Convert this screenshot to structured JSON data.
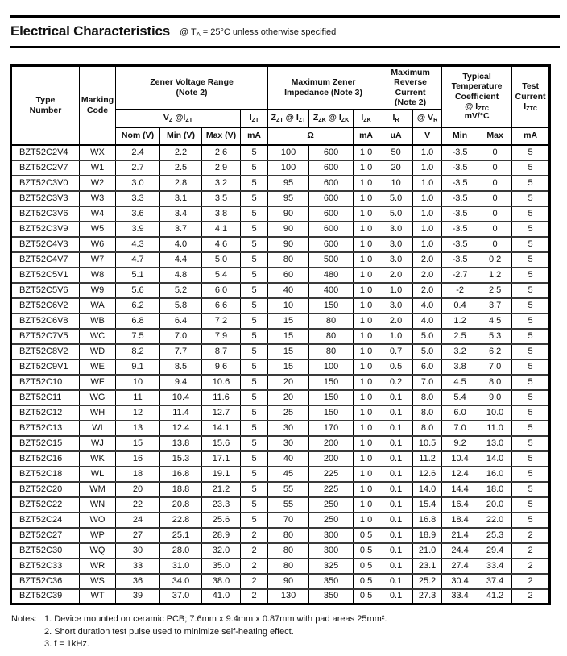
{
  "colors": {
    "background": "#ffffff",
    "text": "#111111",
    "border": "#000000"
  },
  "title": {
    "heading": "Electrical Characteristics",
    "condition_html": "@ T<sub>A</sub> = 25&deg;C unless otherwise specified"
  },
  "table": {
    "header": {
      "type_number_html": "Type<br>Number",
      "marking_code_html": "Marking<br>Code",
      "zener_voltage_range_html": "Zener Voltage Range<br>(Note 2)",
      "max_zener_impedance_html": "Maximum Zener<br>Impedance (Note 3)",
      "max_reverse_current_html": "Maximum<br>Reverse<br>Current<br>(Note 2)",
      "typ_temp_coefficient_html": "Typical<br>Temperature<br>Coefficient<br>@ I<sub>ZTC</sub><br>mV/&deg;C",
      "test_current_html": "Test<br>Current<br>I<sub>ZTC</sub>",
      "vz_at_izt_html": "V<sub>Z</sub> @I<sub>ZT</sub>",
      "izt_html": "I<sub>ZT</sub>",
      "zzt_at_izt_html": "Z<sub>ZT</sub> @ I<sub>ZT</sub>",
      "zzk_at_izk_html": "Z<sub>ZK</sub> @ I<sub>ZK</sub>",
      "izk_html": "I<sub>ZK</sub>",
      "ir_html": "I<sub>R</sub>",
      "at_vr_html": "@ V<sub>R</sub>",
      "nom_v": "Nom (V)",
      "min_v": "Min (V)",
      "max_v": "Max (V)",
      "izt_unit": "mA",
      "impedance_unit": "Ω",
      "izk_unit": "mA",
      "ir_unit": "uA",
      "vr_unit": "V",
      "tc_min": "Min",
      "tc_max": "Max",
      "test_unit": "mA"
    },
    "column_keys": [
      "type-number",
      "marking-code",
      "vz-nom",
      "vz-min",
      "vz-max",
      "izt-ma",
      "zzt-ohm",
      "zzk-ohm",
      "izk-ma",
      "ir-ua",
      "vr-v",
      "tc-min",
      "tc-max",
      "iztc-ma"
    ],
    "rows": [
      [
        "BZT52C2V4",
        "WX",
        "2.4",
        "2.2",
        "2.6",
        "5",
        "100",
        "600",
        "1.0",
        "50",
        "1.0",
        "-3.5",
        "0",
        "5"
      ],
      [
        "BZT52C2V7",
        "W1",
        "2.7",
        "2.5",
        "2.9",
        "5",
        "100",
        "600",
        "1.0",
        "20",
        "1.0",
        "-3.5",
        "0",
        "5"
      ],
      [
        "BZT52C3V0",
        "W2",
        "3.0",
        "2.8",
        "3.2",
        "5",
        "95",
        "600",
        "1.0",
        "10",
        "1.0",
        "-3.5",
        "0",
        "5"
      ],
      [
        "BZT52C3V3",
        "W3",
        "3.3",
        "3.1",
        "3.5",
        "5",
        "95",
        "600",
        "1.0",
        "5.0",
        "1.0",
        "-3.5",
        "0",
        "5"
      ],
      [
        "BZT52C3V6",
        "W4",
        "3.6",
        "3.4",
        "3.8",
        "5",
        "90",
        "600",
        "1.0",
        "5.0",
        "1.0",
        "-3.5",
        "0",
        "5"
      ],
      [
        "BZT52C3V9",
        "W5",
        "3.9",
        "3.7",
        "4.1",
        "5",
        "90",
        "600",
        "1.0",
        "3.0",
        "1.0",
        "-3.5",
        "0",
        "5"
      ],
      [
        "BZT52C4V3",
        "W6",
        "4.3",
        "4.0",
        "4.6",
        "5",
        "90",
        "600",
        "1.0",
        "3.0",
        "1.0",
        "-3.5",
        "0",
        "5"
      ],
      [
        "BZT52C4V7",
        "W7",
        "4.7",
        "4.4",
        "5.0",
        "5",
        "80",
        "500",
        "1.0",
        "3.0",
        "2.0",
        "-3.5",
        "0.2",
        "5"
      ],
      [
        "BZT52C5V1",
        "W8",
        "5.1",
        "4.8",
        "5.4",
        "5",
        "60",
        "480",
        "1.0",
        "2.0",
        "2.0",
        "-2.7",
        "1.2",
        "5"
      ],
      [
        "BZT52C5V6",
        "W9",
        "5.6",
        "5.2",
        "6.0",
        "5",
        "40",
        "400",
        "1.0",
        "1.0",
        "2.0",
        "-2",
        "2.5",
        "5"
      ],
      [
        "BZT52C6V2",
        "WA",
        "6.2",
        "5.8",
        "6.6",
        "5",
        "10",
        "150",
        "1.0",
        "3.0",
        "4.0",
        "0.4",
        "3.7",
        "5"
      ],
      [
        "BZT52C6V8",
        "WB",
        "6.8",
        "6.4",
        "7.2",
        "5",
        "15",
        "80",
        "1.0",
        "2.0",
        "4.0",
        "1.2",
        "4.5",
        "5"
      ],
      [
        "BZT52C7V5",
        "WC",
        "7.5",
        "7.0",
        "7.9",
        "5",
        "15",
        "80",
        "1.0",
        "1.0",
        "5.0",
        "2.5",
        "5.3",
        "5"
      ],
      [
        "BZT52C8V2",
        "WD",
        "8.2",
        "7.7",
        "8.7",
        "5",
        "15",
        "80",
        "1.0",
        "0.7",
        "5.0",
        "3.2",
        "6.2",
        "5"
      ],
      [
        "BZT52C9V1",
        "WE",
        "9.1",
        "8.5",
        "9.6",
        "5",
        "15",
        "100",
        "1.0",
        "0.5",
        "6.0",
        "3.8",
        "7.0",
        "5"
      ],
      [
        "BZT52C10",
        "WF",
        "10",
        "9.4",
        "10.6",
        "5",
        "20",
        "150",
        "1.0",
        "0.2",
        "7.0",
        "4.5",
        "8.0",
        "5"
      ],
      [
        "BZT52C11",
        "WG",
        "11",
        "10.4",
        "11.6",
        "5",
        "20",
        "150",
        "1.0",
        "0.1",
        "8.0",
        "5.4",
        "9.0",
        "5"
      ],
      [
        "BZT52C12",
        "WH",
        "12",
        "11.4",
        "12.7",
        "5",
        "25",
        "150",
        "1.0",
        "0.1",
        "8.0",
        "6.0",
        "10.0",
        "5"
      ],
      [
        "BZT52C13",
        "WI",
        "13",
        "12.4",
        "14.1",
        "5",
        "30",
        "170",
        "1.0",
        "0.1",
        "8.0",
        "7.0",
        "11.0",
        "5"
      ],
      [
        "BZT52C15",
        "WJ",
        "15",
        "13.8",
        "15.6",
        "5",
        "30",
        "200",
        "1.0",
        "0.1",
        "10.5",
        "9.2",
        "13.0",
        "5"
      ],
      [
        "BZT52C16",
        "WK",
        "16",
        "15.3",
        "17.1",
        "5",
        "40",
        "200",
        "1.0",
        "0.1",
        "11.2",
        "10.4",
        "14.0",
        "5"
      ],
      [
        "BZT52C18",
        "WL",
        "18",
        "16.8",
        "19.1",
        "5",
        "45",
        "225",
        "1.0",
        "0.1",
        "12.6",
        "12.4",
        "16.0",
        "5"
      ],
      [
        "BZT52C20",
        "WM",
        "20",
        "18.8",
        "21.2",
        "5",
        "55",
        "225",
        "1.0",
        "0.1",
        "14.0",
        "14.4",
        "18.0",
        "5"
      ],
      [
        "BZT52C22",
        "WN",
        "22",
        "20.8",
        "23.3",
        "5",
        "55",
        "250",
        "1.0",
        "0.1",
        "15.4",
        "16.4",
        "20.0",
        "5"
      ],
      [
        "BZT52C24",
        "WO",
        "24",
        "22.8",
        "25.6",
        "5",
        "70",
        "250",
        "1.0",
        "0.1",
        "16.8",
        "18.4",
        "22.0",
        "5"
      ],
      [
        "BZT52C27",
        "WP",
        "27",
        "25.1",
        "28.9",
        "2",
        "80",
        "300",
        "0.5",
        "0.1",
        "18.9",
        "21.4",
        "25.3",
        "2"
      ],
      [
        "BZT52C30",
        "WQ",
        "30",
        "28.0",
        "32.0",
        "2",
        "80",
        "300",
        "0.5",
        "0.1",
        "21.0",
        "24.4",
        "29.4",
        "2"
      ],
      [
        "BZT52C33",
        "WR",
        "33",
        "31.0",
        "35.0",
        "2",
        "80",
        "325",
        "0.5",
        "0.1",
        "23.1",
        "27.4",
        "33.4",
        "2"
      ],
      [
        "BZT52C36",
        "WS",
        "36",
        "34.0",
        "38.0",
        "2",
        "90",
        "350",
        "0.5",
        "0.1",
        "25.2",
        "30.4",
        "37.4",
        "2"
      ],
      [
        "BZT52C39",
        "WT",
        "39",
        "37.0",
        "41.0",
        "2",
        "130",
        "350",
        "0.5",
        "0.1",
        "27.3",
        "33.4",
        "41.2",
        "2"
      ]
    ]
  },
  "notes": {
    "label": "Notes:",
    "items": [
      "1. Device mounted on ceramic PCB; 7.6mm x 9.4mm x 0.87mm with pad areas 25mm².",
      "2. Short duration test pulse used to minimize self-heating effect.",
      "3. f = 1kHz."
    ]
  }
}
